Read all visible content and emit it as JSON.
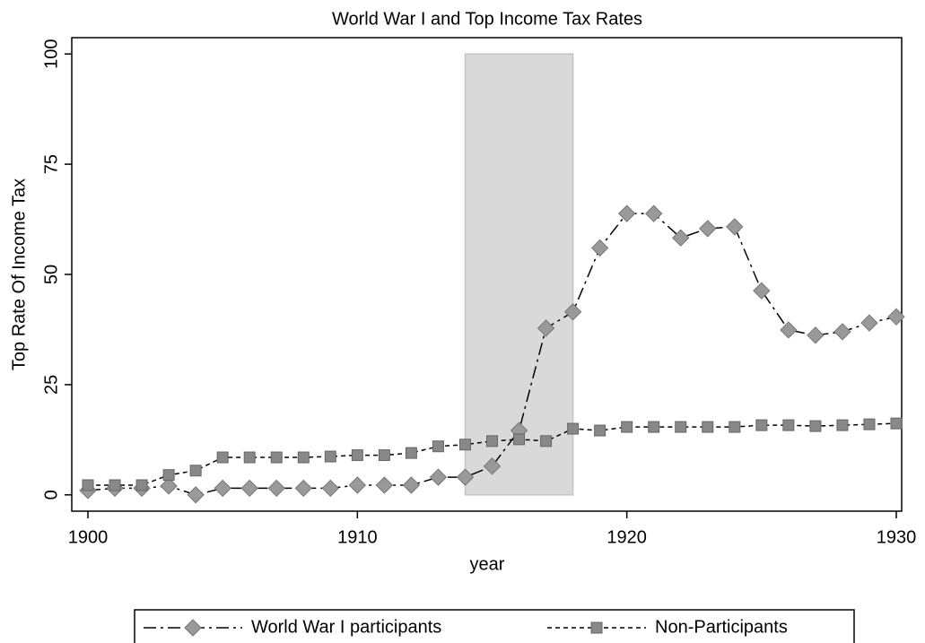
{
  "chart_data": {
    "type": "line",
    "title": "World War I and Top Income Tax Rates",
    "x_label": "year",
    "y_label": "Top Rate Of Income Tax",
    "x": [
      1900,
      1901,
      1902,
      1903,
      1904,
      1905,
      1906,
      1907,
      1908,
      1909,
      1910,
      1911,
      1912,
      1913,
      1914,
      1915,
      1916,
      1917,
      1918,
      1919,
      1920,
      1921,
      1922,
      1923,
      1924,
      1925,
      1926,
      1927,
      1928,
      1929,
      1930
    ],
    "series": [
      {
        "name": "World War I participants",
        "color": "#999999",
        "marker": "diamond",
        "values": [
          1,
          1.5,
          1.5,
          2,
          0,
          1.5,
          1.5,
          1.5,
          1.5,
          1.5,
          2.2,
          2.2,
          2.2,
          4,
          4,
          6.5,
          14.6,
          37.8,
          41.5,
          56,
          63.8,
          63.8,
          58.3,
          60.4,
          60.8,
          46.3,
          37.4,
          36.2,
          37,
          39,
          40.4
        ]
      },
      {
        "name": "Non-Participants",
        "color": "#888888",
        "marker": "square",
        "values": [
          2.2,
          2.2,
          2.2,
          4.5,
          5.5,
          8.5,
          8.5,
          8.5,
          8.5,
          8.7,
          9,
          9,
          9.5,
          11,
          11.4,
          12.2,
          12.6,
          12.2,
          15,
          14.6,
          15.4,
          15.4,
          15.4,
          15.4,
          15.4,
          15.8,
          15.8,
          15.6,
          15.8,
          16,
          16.2
        ]
      }
    ],
    "shaded_range": [
      1914,
      1918
    ],
    "xlim": [
      1899.4,
      1930.2
    ],
    "ylim": [
      -3.7,
      103.7
    ],
    "xticks": [
      1900,
      1910,
      1920,
      1930
    ],
    "yticks": [
      0,
      25,
      50,
      75,
      100
    ],
    "grid": false,
    "legend": "bottom"
  }
}
